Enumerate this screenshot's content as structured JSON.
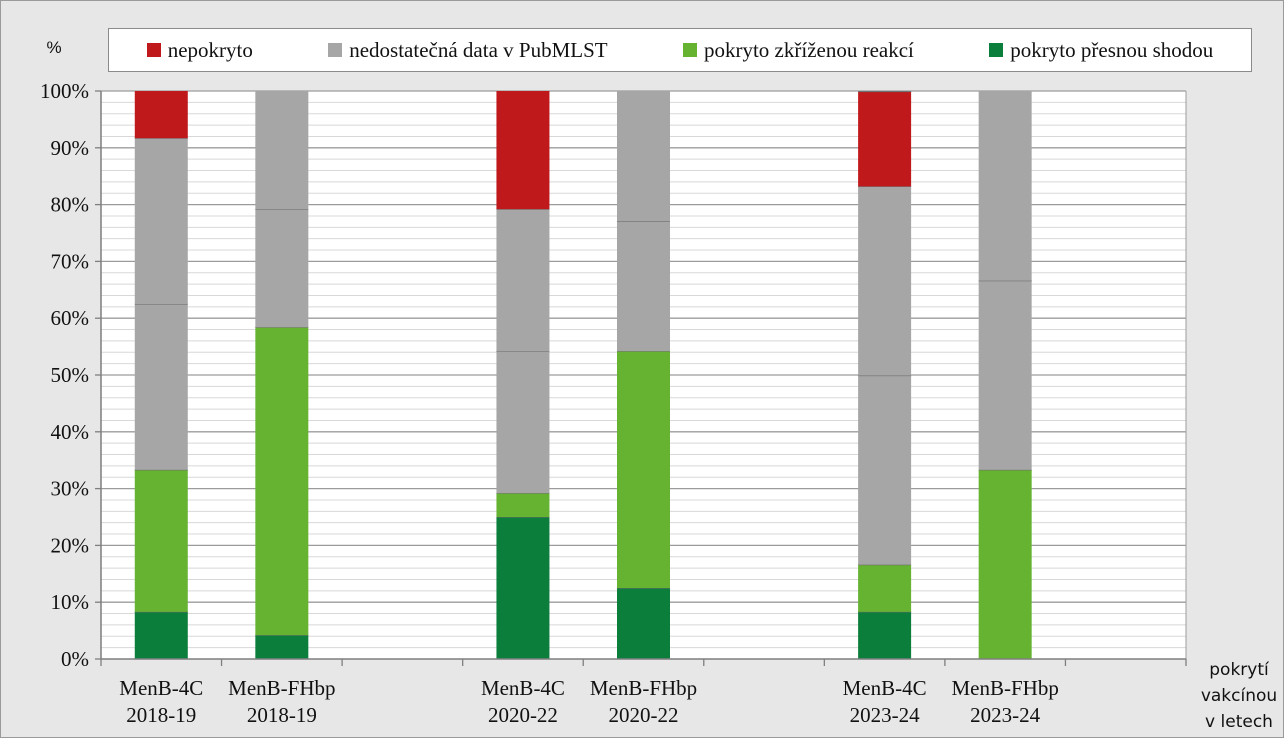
{
  "chart_data": {
    "type": "bar",
    "stacked": true,
    "percent_stacked": true,
    "ylabel": "%",
    "xlabel": [
      "pokrytí",
      "vakcínou",
      "v letech"
    ],
    "ylim": [
      0,
      100
    ],
    "yticks": [
      "0%",
      "10%",
      "20%",
      "30%",
      "40%",
      "50%",
      "60%",
      "70%",
      "80%",
      "90%",
      "100%"
    ],
    "grid": true,
    "legend_position": "top",
    "category_slots": 9,
    "categories": [
      {
        "slot": 0,
        "lines": [
          "MenB-4C",
          "2018-19"
        ]
      },
      {
        "slot": 1,
        "lines": [
          "MenB-FHbp",
          "2018-19"
        ]
      },
      {
        "slot": 3,
        "lines": [
          "MenB-4C",
          "2020-22"
        ]
      },
      {
        "slot": 4,
        "lines": [
          "MenB-FHbp",
          "2020-22"
        ]
      },
      {
        "slot": 6,
        "lines": [
          "MenB-4C",
          "2023-24"
        ]
      },
      {
        "slot": 7,
        "lines": [
          "MenB-FHbp",
          "2023-24"
        ]
      }
    ],
    "series": [
      {
        "name": "pokryto přesnou shodou",
        "color": "#0b7e3b",
        "segments": [
          [
            8.3
          ],
          [
            4.2
          ],
          [
            25
          ],
          [
            12.5
          ],
          [
            8.3
          ],
          []
        ]
      },
      {
        "name": "pokryto zkříženou reakcí",
        "color": "#66b332",
        "segments": [
          [
            25
          ],
          [
            54.2
          ],
          [
            4.2
          ],
          [
            41.7
          ],
          [
            8.3
          ],
          [
            33.3
          ]
        ]
      },
      {
        "name": "nedostatečná data v PubMLST",
        "color": "#a6a6a6",
        "segments": [
          [
            29.2,
            29.2
          ],
          [
            20.8,
            20.8
          ],
          [
            25,
            25
          ],
          [
            22.9,
            22.9
          ],
          [
            33.3,
            33.3
          ],
          [
            33.3,
            33.4
          ]
        ]
      },
      {
        "name": "nepokryto",
        "color": "#c0191b",
        "segments": [
          [
            8.3
          ],
          [],
          [
            20.8
          ],
          [],
          [
            16.7
          ],
          []
        ]
      }
    ],
    "legend_order": [
      "nepokryto",
      "nedostatečná data v PubMLST",
      "pokryto zkříženou reakcí",
      "pokryto přesnou shodou"
    ]
  }
}
